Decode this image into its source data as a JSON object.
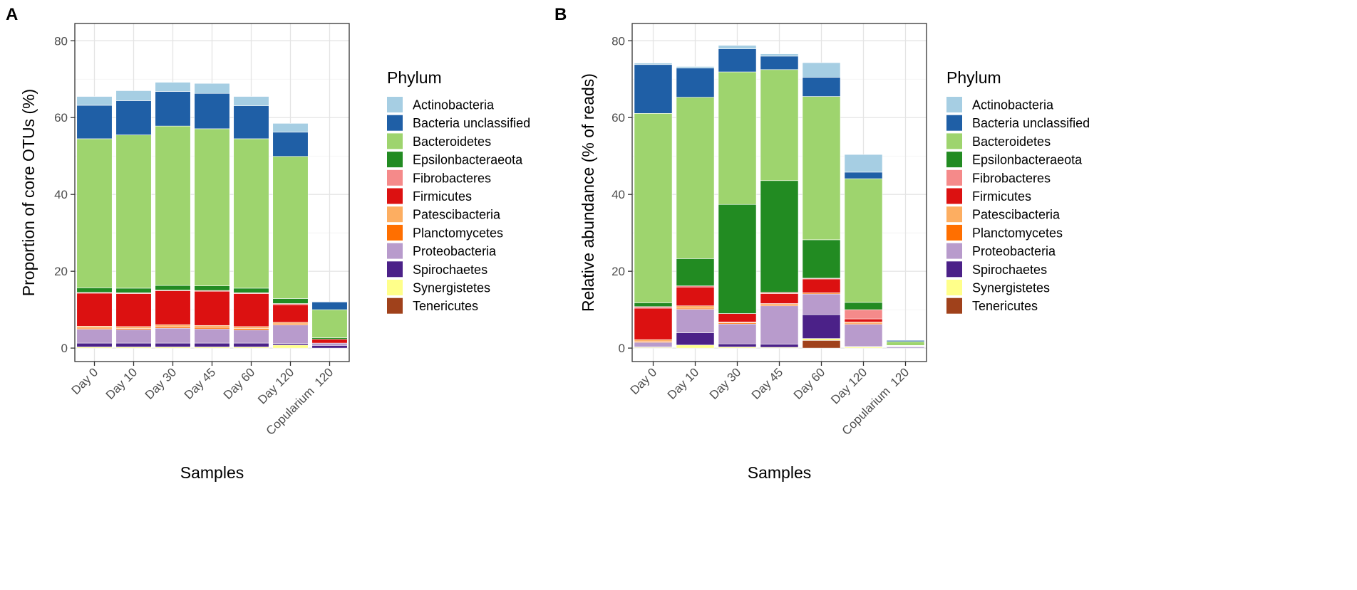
{
  "legend_title": "Phylum",
  "phyla": [
    {
      "name": "Actinobacteria",
      "color": "#a6cee3"
    },
    {
      "name": "Bacteria unclassified",
      "color": "#1f5fa6"
    },
    {
      "name": "Bacteroidetes",
      "color": "#9ed46e"
    },
    {
      "name": "Epsilonbacteraeota",
      "color": "#228b22"
    },
    {
      "name": "Fibrobacteres",
      "color": "#f58a8a"
    },
    {
      "name": "Firmicutes",
      "color": "#dc1111"
    },
    {
      "name": "Patescibacteria",
      "color": "#fdae61"
    },
    {
      "name": "Planctomycetes",
      "color": "#ff6f00"
    },
    {
      "name": "Proteobacteria",
      "color": "#b89bcc"
    },
    {
      "name": "Spirochaetes",
      "color": "#4b2188"
    },
    {
      "name": "Synergistetes",
      "color": "#ffff8a"
    },
    {
      "name": "Tenericutes",
      "color": "#a0411b"
    }
  ],
  "chart_data": [
    {
      "panel_label": "A",
      "type": "bar",
      "stacked": true,
      "title": "",
      "xlabel": "Samples",
      "ylabel": "Proportion of core OTUs (%)",
      "ylim": [
        -3.5,
        84.5
      ],
      "yticks": [
        0,
        20,
        40,
        60,
        80
      ],
      "categories": [
        "Day 0",
        "Day 10",
        "Day 30",
        "Day 45",
        "Day 60",
        "Day 120",
        "Copularium  120"
      ],
      "series": [
        {
          "name": "Tenericutes",
          "values": [
            0,
            0,
            0,
            0,
            0,
            0,
            0
          ]
        },
        {
          "name": "Synergistetes",
          "values": [
            0.3,
            0.3,
            0.3,
            0.3,
            0.3,
            0.8,
            0
          ]
        },
        {
          "name": "Spirochaetes",
          "values": [
            1,
            1,
            1,
            1,
            1,
            0.4,
            0.7
          ]
        },
        {
          "name": "Proteobacteria",
          "values": [
            3.6,
            3.5,
            3.9,
            3.7,
            3.4,
            4.8,
            0.6
          ]
        },
        {
          "name": "Planctomycetes",
          "values": [
            0.3,
            0.3,
            0.4,
            0.4,
            0.4,
            0.3,
            0
          ]
        },
        {
          "name": "Patescibacteria",
          "values": [
            0.5,
            0.5,
            0.5,
            0.5,
            0.5,
            0.4,
            0
          ]
        },
        {
          "name": "Firmicutes",
          "values": [
            8.6,
            8.6,
            8.8,
            8.9,
            8.6,
            4.6,
            1
          ]
        },
        {
          "name": "Fibrobacteres",
          "values": [
            0.2,
            0.2,
            0.2,
            0.2,
            0.2,
            0.3,
            0
          ]
        },
        {
          "name": "Epsilonbacteraeota",
          "values": [
            1.2,
            1.2,
            1.2,
            1.2,
            1.2,
            1.3,
            0.4
          ]
        },
        {
          "name": "Bacteroidetes",
          "values": [
            38.8,
            39.9,
            41.5,
            40.9,
            38.9,
            37,
            7.3
          ]
        },
        {
          "name": "Bacteria unclassified",
          "values": [
            8.7,
            8.9,
            9,
            9.2,
            8.6,
            6.3,
            2
          ]
        },
        {
          "name": "Actinobacteria",
          "values": [
            2.3,
            2.6,
            2.4,
            2.6,
            2.4,
            2.3,
            0
          ]
        }
      ]
    },
    {
      "panel_label": "B",
      "type": "bar",
      "stacked": true,
      "title": "",
      "xlabel": "Samples",
      "ylabel": "Relative abundance (% of reads)",
      "ylim": [
        -3.5,
        84.5
      ],
      "yticks": [
        0,
        20,
        40,
        60,
        80
      ],
      "categories": [
        "Day 0",
        "Day 10",
        "Day 30",
        "Day 45",
        "Day 60",
        "Day 120",
        "Copularium  120"
      ],
      "series": [
        {
          "name": "Tenericutes",
          "values": [
            0,
            0,
            0,
            0,
            2,
            0,
            0
          ]
        },
        {
          "name": "Synergistetes",
          "values": [
            0.2,
            0.8,
            0.3,
            0.2,
            0.5,
            0.3,
            0
          ]
        },
        {
          "name": "Spirochaetes",
          "values": [
            0.2,
            3.2,
            0.8,
            0.8,
            6.2,
            0.1,
            0.2
          ]
        },
        {
          "name": "Proteobacteria",
          "values": [
            1.1,
            6.1,
            5.2,
            10,
            5.4,
            5.8,
            0.2
          ]
        },
        {
          "name": "Planctomycetes",
          "values": [
            0.3,
            0.3,
            0.3,
            0.3,
            0.3,
            0.3,
            0
          ]
        },
        {
          "name": "Patescibacteria",
          "values": [
            0.4,
            0.6,
            0.2,
            0.3,
            0,
            0.3,
            0
          ]
        },
        {
          "name": "Firmicutes",
          "values": [
            8.2,
            4.9,
            2.2,
            2.6,
            3.6,
            0.8,
            0.1
          ]
        },
        {
          "name": "Fibrobacteres",
          "values": [
            0.4,
            0.3,
            0,
            0.3,
            0.2,
            2.4,
            0.1
          ]
        },
        {
          "name": "Epsilonbacteraeota",
          "values": [
            1,
            7.1,
            28.4,
            29.1,
            10,
            1.9,
            0.1
          ]
        },
        {
          "name": "Bacteroidetes",
          "values": [
            49.3,
            42,
            34.5,
            28.9,
            37.3,
            32.2,
            1
          ]
        },
        {
          "name": "Bacteria unclassified",
          "values": [
            12.7,
            7.6,
            6,
            3.5,
            5,
            1.7,
            0.3
          ]
        },
        {
          "name": "Actinobacteria",
          "values": [
            0.4,
            0.4,
            0.9,
            0.6,
            3.8,
            4.6,
            0
          ]
        }
      ]
    }
  ]
}
